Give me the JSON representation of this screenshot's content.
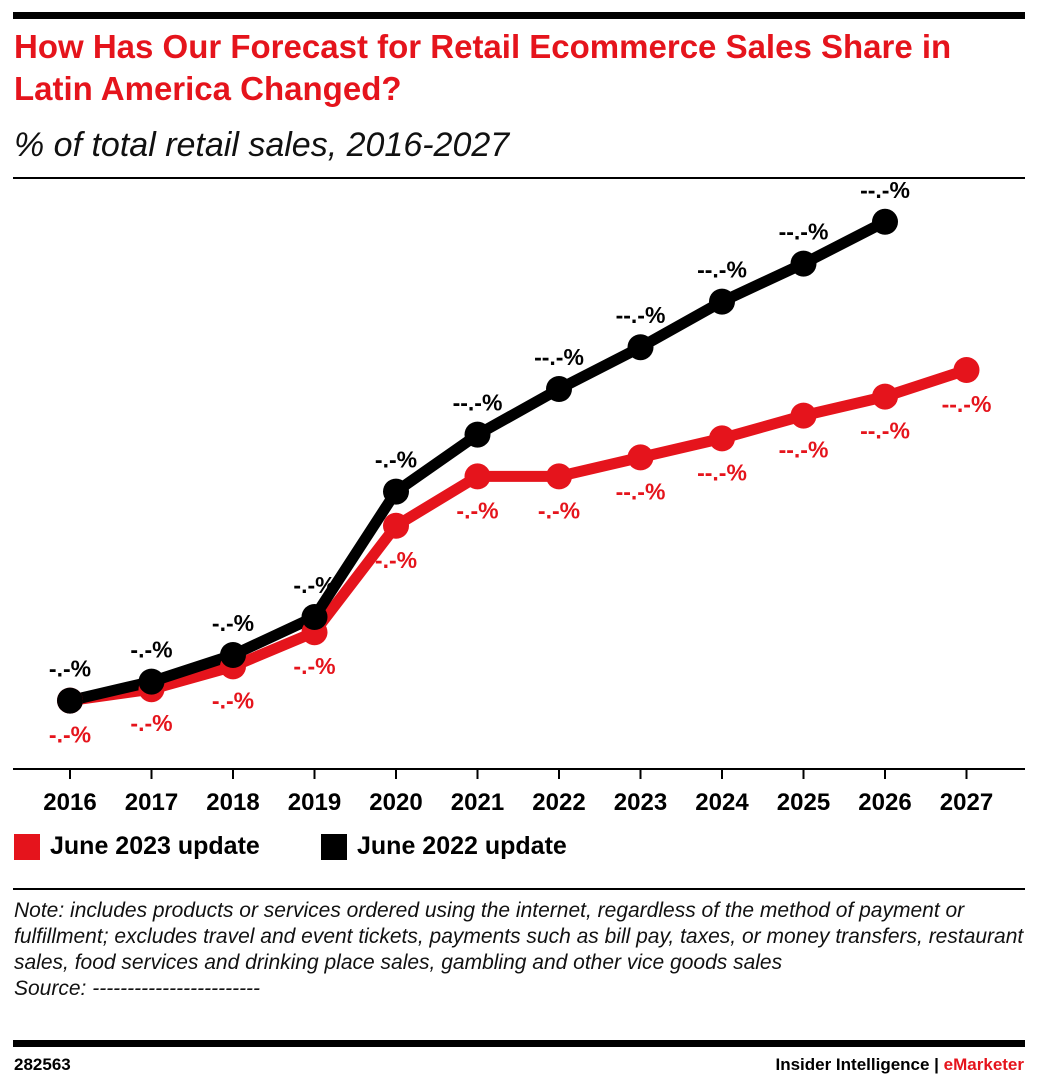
{
  "title": "How Has Our Forecast for Retail Ecommerce Sales Share in Latin America Changed?",
  "subtitle": "% of total retail sales, 2016-2027",
  "colors": {
    "june_2023": "#e5141c",
    "june_2022": "#000000",
    "title": "#e5141c"
  },
  "chart_data": {
    "type": "line",
    "title": "How Has Our Forecast for Retail Ecommerce Sales Share in Latin America Changed?",
    "subtitle": "% of total retail sales, 2016-2027",
    "xlabel": "",
    "ylabel": "",
    "grid": false,
    "legend": "bottom-left",
    "categories": [
      "2016",
      "2017",
      "2018",
      "2019",
      "2020",
      "2021",
      "2022",
      "2023",
      "2024",
      "2025",
      "2026",
      "2027"
    ],
    "ylim": [
      2,
      18
    ],
    "series": [
      {
        "name": "June 2023 update",
        "color": "#e5141c",
        "values": [
          3.8,
          4.1,
          4.7,
          5.6,
          8.4,
          9.7,
          9.7,
          10.2,
          10.7,
          11.3,
          11.8,
          12.5
        ],
        "labels": [
          "-.-%",
          "-.-%",
          "-.-%",
          "-.-%",
          "-.-%",
          "-.-%",
          "-.-%",
          "--.-%",
          "--.-%",
          "--.-%",
          "--.-%",
          "--.-%"
        ]
      },
      {
        "name": "June 2022 update",
        "color": "#000000",
        "values": [
          3.8,
          4.3,
          5.0,
          6.0,
          9.3,
          10.8,
          12.0,
          13.1,
          14.3,
          15.3,
          16.4,
          null
        ],
        "labels": [
          "-.-%",
          "-.-%",
          "-.-%",
          "-.-%",
          "-.-%",
          "--.-%",
          "--.-%",
          "--.-%",
          "--.-%",
          "--.-%",
          "--.-%",
          null
        ]
      }
    ]
  },
  "legend": [
    "June 2023 update",
    "June 2022 update"
  ],
  "note": "Note: includes products or services ordered using the internet, regardless of the method of payment or fulfillment; excludes travel and event tickets, payments such as bill pay, taxes, or money transfers, restaurant sales, food services and drinking place sales, gambling and other vice goods sales",
  "source": "Source: ------------------------",
  "footer": {
    "id": "282563",
    "brand_left": "Insider Intelligence | ",
    "brand_right": "eMarketer"
  }
}
